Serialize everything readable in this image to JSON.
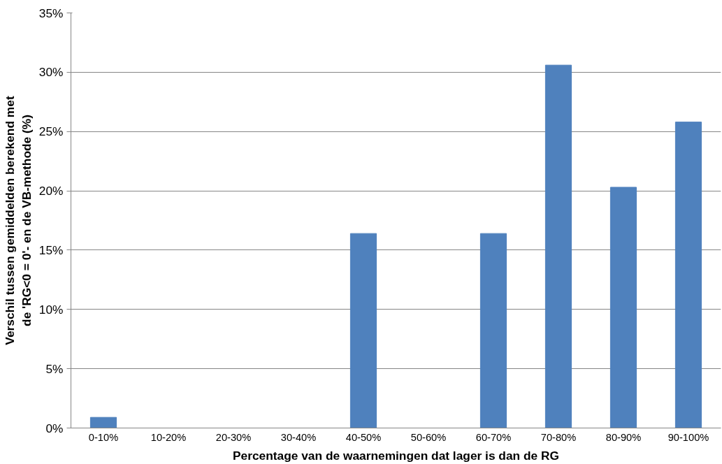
{
  "chart_data": {
    "type": "bar",
    "xlabel": "Percentage van de waarnemingen dat lager is dan de RG",
    "ylabel": "Verschil tussen gemiddelden berekend met\nde 'RG<0 = 0'- en de VB-methode (%)",
    "categories": [
      "0-10%",
      "10-20%",
      "20-30%",
      "30-40%",
      "40-50%",
      "50-60%",
      "60-70%",
      "70-80%",
      "80-90%",
      "90-100%"
    ],
    "values": [
      0.9,
      0,
      0,
      0,
      16.4,
      0,
      16.4,
      30.6,
      20.3,
      25.8
    ],
    "color": "#4f81bd",
    "ylim": [
      0,
      35
    ],
    "yticks": [
      {
        "value": 0,
        "label": "0%"
      },
      {
        "value": 5,
        "label": "5%"
      },
      {
        "value": 10,
        "label": "10%"
      },
      {
        "value": 15,
        "label": "15%"
      },
      {
        "value": 20,
        "label": "20%"
      },
      {
        "value": 25,
        "label": "25%"
      },
      {
        "value": 30,
        "label": "30%"
      },
      {
        "value": 35,
        "label": "35%"
      }
    ],
    "grid": "y"
  }
}
